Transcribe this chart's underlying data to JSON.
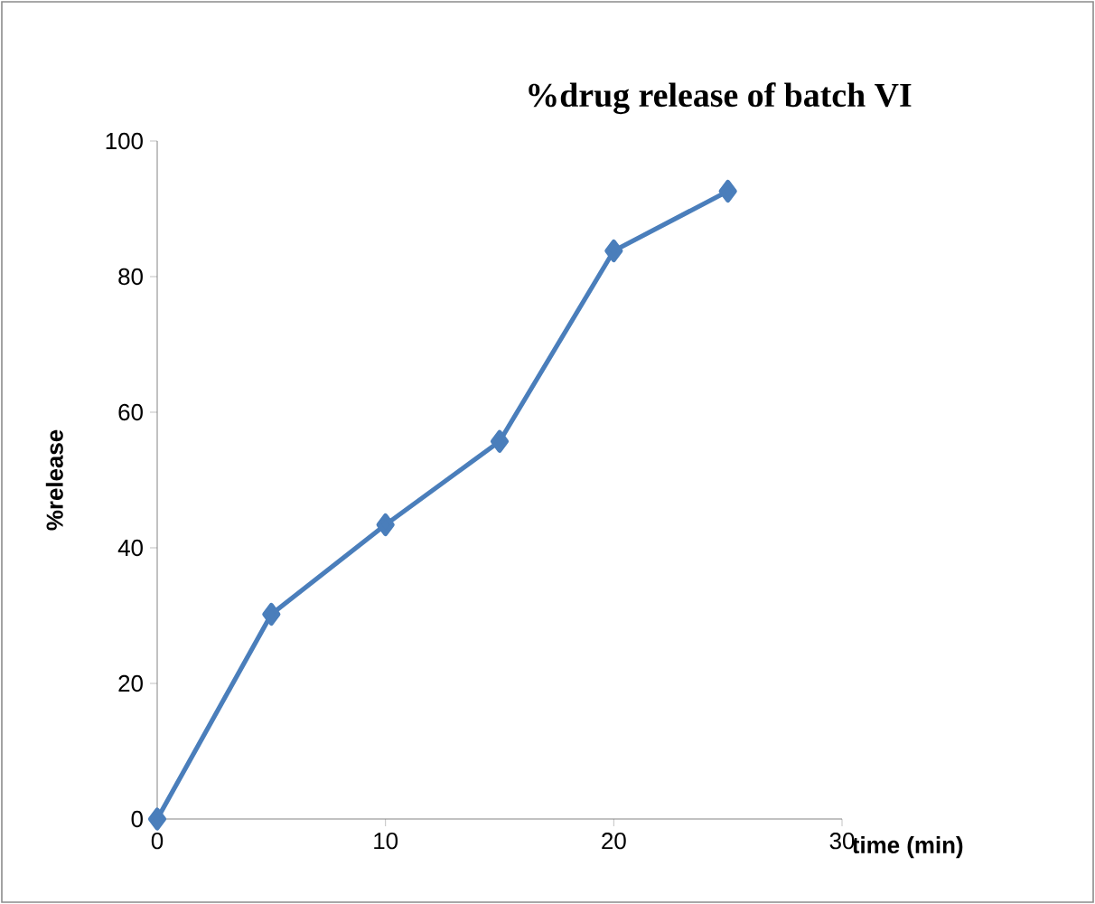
{
  "chart_data": {
    "type": "line",
    "title": "%drug release of batch VI",
    "xlabel": "time (min)",
    "ylabel": "%release",
    "x": [
      0,
      5,
      10,
      15,
      20,
      25
    ],
    "series": [
      {
        "color": "#4a7ebb",
        "values": [
          0,
          30.2,
          43.4,
          55.7,
          83.8,
          92.6
        ]
      }
    ],
    "xlim": [
      0,
      30
    ],
    "xticks": [
      0,
      10,
      20,
      30
    ],
    "ylim": [
      0,
      100
    ],
    "yticks": [
      0,
      20,
      40,
      60,
      80,
      100
    ],
    "marker": "diamond",
    "line_style": "solid"
  }
}
